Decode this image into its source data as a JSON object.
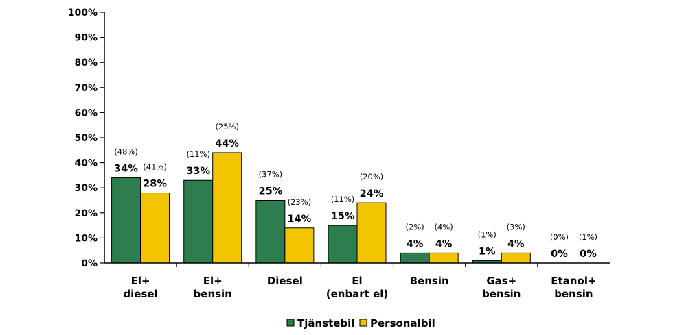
{
  "chart_data": {
    "type": "bar",
    "categories": [
      [
        "El+",
        "diesel"
      ],
      [
        "El+",
        "bensin"
      ],
      [
        "Diesel"
      ],
      [
        "El",
        "(enbart el)"
      ],
      [
        "Bensin"
      ],
      [
        "Gas+",
        "bensin"
      ],
      [
        "Etanol+",
        "bensin"
      ]
    ],
    "series": [
      {
        "name": "Tjänstebil",
        "color": "#2e7d4f",
        "values": [
          34,
          33,
          25,
          15,
          4,
          1,
          0
        ],
        "value_labels": [
          "34%",
          "33%",
          "25%",
          "15%",
          "4%",
          "1%",
          "0%"
        ],
        "secondary_labels": [
          "(48%)",
          "(11%)",
          "(37%)",
          "(11%)",
          "(2%)",
          "(1%)",
          "(0%)"
        ]
      },
      {
        "name": "Personalbil",
        "color": "#f2c500",
        "values": [
          28,
          44,
          14,
          24,
          4,
          4,
          0
        ],
        "value_labels": [
          "28%",
          "44%",
          "14%",
          "24%",
          "4%",
          "4%",
          "0%"
        ],
        "secondary_labels": [
          "(41%)",
          "(25%)",
          "(23%)",
          "(20%)",
          "(4%)",
          "(3%)",
          "(1%)"
        ]
      }
    ],
    "ylim": [
      0,
      100
    ],
    "y_ticks": [
      "0%",
      "10%",
      "20%",
      "30%",
      "40%",
      "50%",
      "60%",
      "70%",
      "80%",
      "90%",
      "100%"
    ],
    "grid": false,
    "legend_position": "bottom"
  }
}
